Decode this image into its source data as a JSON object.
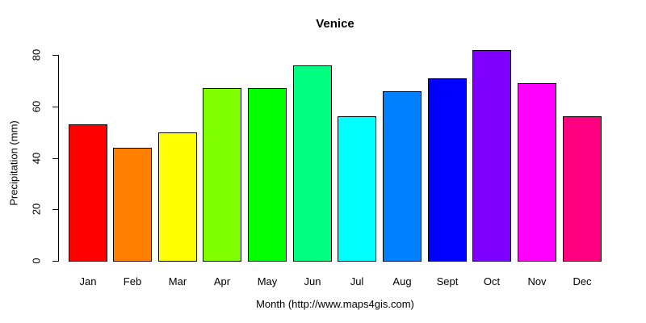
{
  "chart_data": {
    "type": "bar",
    "title": "Venice",
    "xlabel": "Month (http://www.maps4gis.com)",
    "ylabel": "Precipitation (mm)",
    "categories": [
      "Jan",
      "Feb",
      "Mar",
      "Apr",
      "May",
      "Jun",
      "Jul",
      "Aug",
      "Sept",
      "Oct",
      "Nov",
      "Dec"
    ],
    "values": [
      53,
      44,
      50,
      67,
      67,
      76,
      56,
      66,
      71,
      82,
      69,
      56
    ],
    "bar_colors": [
      "#FF0000",
      "#FF8000",
      "#FFFF00",
      "#80FF00",
      "#00FF00",
      "#00FF80",
      "#00FFFF",
      "#0080FF",
      "#0000FF",
      "#8000FF",
      "#FF00FF",
      "#FF0080"
    ],
    "yticks": [
      "0",
      "20",
      "40",
      "60",
      "80"
    ],
    "ylim": [
      0,
      80
    ],
    "grid": "off",
    "legend": "none",
    "bar_border_color": "#000000",
    "background_color": "#FFFFFF",
    "text_color": "#000000"
  }
}
